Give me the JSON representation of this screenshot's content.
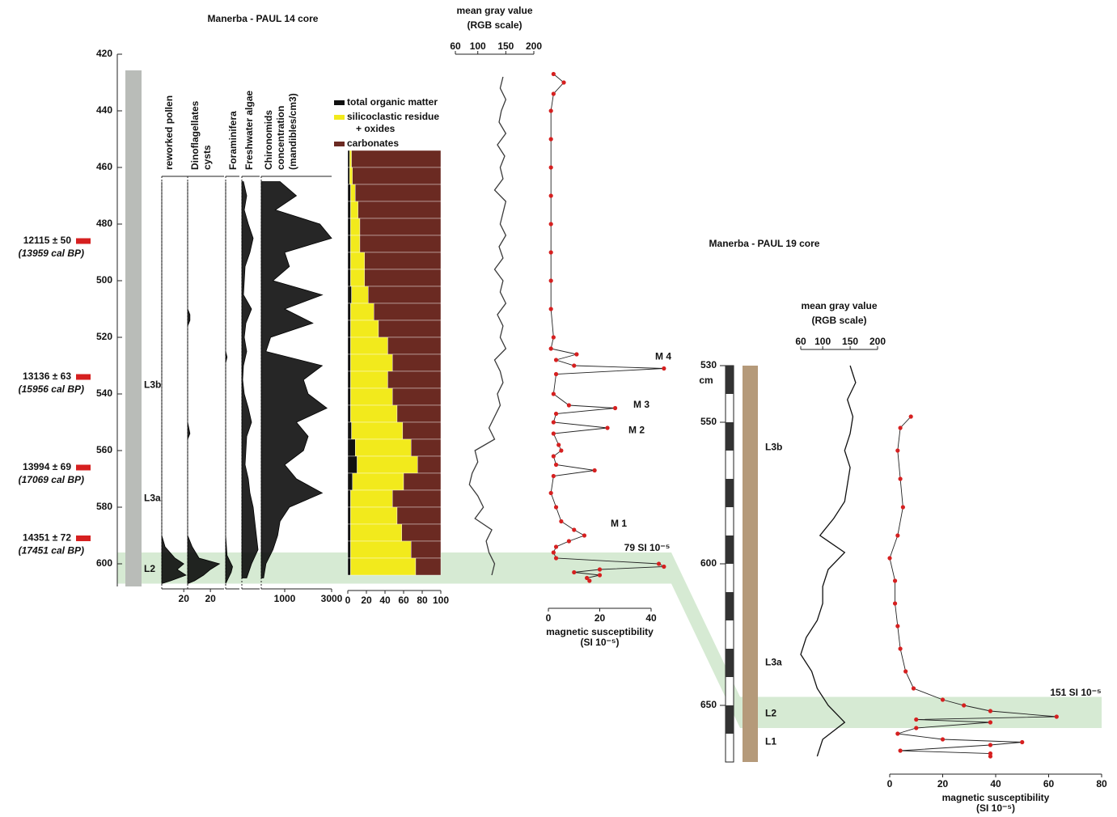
{
  "chart_data": [
    {
      "type": "depth-axis",
      "title": "Manerba - PAUL 14 core",
      "ylim": [
        420,
        608
      ],
      "yticks": [
        420,
        440,
        460,
        480,
        500,
        520,
        540,
        560,
        580,
        600
      ],
      "dates": [
        {
          "label": "12115 ± 50",
          "cal": "(13959 cal BP)",
          "depth": 486
        },
        {
          "label": "13136 ± 63",
          "cal": "(15956 cal BP)",
          "depth": 534
        },
        {
          "label": "13994 ± 69",
          "cal": "(17069 cal BP)",
          "depth": 566
        },
        {
          "label": "14351 ± 72",
          "cal": "(17451 cal BP)",
          "depth": 591
        }
      ],
      "units": [
        {
          "label": "L3b",
          "depth": 537
        },
        {
          "label": "L3a",
          "depth": 577
        },
        {
          "label": "L2",
          "depth": 602
        }
      ],
      "event_band": [
        596,
        607
      ],
      "color": "#cfe6cb"
    },
    {
      "type": "area",
      "title": [
        "reworked pollen"
      ],
      "xlim": [
        0,
        25
      ],
      "xticks": [
        20
      ],
      "color": "#000000",
      "depth": [
        465,
        590,
        594,
        598,
        600,
        602,
        604,
        606,
        607
      ],
      "values": [
        0,
        0,
        3,
        12,
        20,
        14,
        22,
        8,
        0
      ]
    },
    {
      "type": "area",
      "title": [
        "Dinoflagellates",
        "cysts"
      ],
      "xlim": [
        0,
        32
      ],
      "xticks": [
        20
      ],
      "color": "#000000",
      "depth": [
        465,
        510,
        512,
        514,
        516,
        550,
        552,
        554,
        556,
        590,
        594,
        598,
        600,
        602,
        604,
        606,
        607
      ],
      "values": [
        0,
        0,
        2,
        2,
        0,
        0,
        1,
        2,
        0,
        0,
        4,
        10,
        28,
        20,
        14,
        6,
        0
      ]
    },
    {
      "type": "area",
      "title": [
        "Foraminifera"
      ],
      "xlim": [
        0,
        20
      ],
      "xticks": [],
      "color": "#000000",
      "depth": [
        465,
        525,
        527,
        529,
        590,
        597,
        599,
        601,
        603,
        605,
        607
      ],
      "values": [
        0,
        0,
        2,
        0,
        0,
        2,
        6,
        10,
        8,
        4,
        0
      ]
    },
    {
      "type": "area",
      "title": [
        "Freshwater algae"
      ],
      "xlim": [
        0,
        22
      ],
      "xticks": [],
      "color": "#000000",
      "depth": [
        465,
        470,
        475,
        480,
        485,
        490,
        495,
        500,
        505,
        510,
        515,
        520,
        525,
        530,
        535,
        540,
        545,
        550,
        555,
        560,
        565,
        570,
        575,
        580,
        585,
        590,
        595,
        600,
        605
      ],
      "values": [
        2,
        6,
        3,
        8,
        14,
        10,
        4,
        3,
        2,
        12,
        5,
        3,
        6,
        2,
        1,
        3,
        8,
        12,
        6,
        5,
        4,
        8,
        10,
        14,
        16,
        18,
        20,
        12,
        6
      ]
    },
    {
      "type": "area",
      "title": [
        "Chironomids",
        "concentration",
        "(mandibles/cm3)"
      ],
      "xlim": [
        0,
        3000
      ],
      "xticks": [
        1000,
        3000
      ],
      "color": "#000000",
      "depth": [
        465,
        470,
        475,
        480,
        485,
        490,
        495,
        500,
        505,
        510,
        515,
        520,
        525,
        530,
        535,
        540,
        545,
        550,
        555,
        560,
        565,
        570,
        575,
        580,
        585,
        590,
        595,
        600,
        605
      ],
      "values": [
        800,
        1500,
        600,
        2500,
        3000,
        1000,
        1200,
        500,
        2600,
        1000,
        2200,
        400,
        200,
        2600,
        1800,
        2000,
        2800,
        1500,
        2000,
        1800,
        1000,
        1500,
        2600,
        1200,
        800,
        700,
        500,
        200,
        100
      ]
    },
    {
      "type": "stacked-bar",
      "xlim": [
        0,
        100
      ],
      "xticks": [
        0,
        20,
        40,
        60,
        80,
        100
      ],
      "depth": [
        457,
        463,
        469,
        475,
        481,
        487,
        493,
        499,
        505,
        511,
        517,
        523,
        529,
        535,
        541,
        547,
        553,
        559,
        565,
        571,
        577,
        583,
        589,
        595,
        601
      ],
      "series": [
        {
          "name": "total organic matter",
          "color": "#111111",
          "values": [
            2,
            2,
            3,
            3,
            3,
            3,
            3,
            3,
            4,
            3,
            3,
            3,
            3,
            3,
            3,
            3,
            4,
            8,
            10,
            5,
            3,
            3,
            3,
            3,
            3
          ]
        },
        {
          "name": [
            "silicoclastic residue",
            "+ oxides"
          ],
          "color": "#f2ea1c",
          "values": [
            2,
            3,
            5,
            8,
            10,
            10,
            15,
            15,
            18,
            25,
            30,
            40,
            45,
            40,
            45,
            50,
            55,
            60,
            65,
            55,
            45,
            50,
            55,
            65,
            70
          ]
        },
        {
          "name": "carbonates",
          "color": "#6b2a22",
          "values": [
            96,
            95,
            92,
            89,
            87,
            87,
            82,
            82,
            78,
            72,
            67,
            57,
            52,
            57,
            52,
            47,
            41,
            32,
            25,
            40,
            52,
            47,
            42,
            32,
            27
          ]
        }
      ]
    },
    {
      "type": "line",
      "title": "mean gray value",
      "subtitle": "(RGB scale)",
      "xlim": [
        60,
        200
      ],
      "xticks": [
        60,
        100,
        150,
        200
      ],
      "color": "#3a3a3a",
      "depth": [
        428,
        432,
        436,
        440,
        444,
        448,
        452,
        456,
        460,
        464,
        468,
        472,
        476,
        480,
        484,
        488,
        492,
        496,
        500,
        504,
        508,
        512,
        516,
        520,
        524,
        528,
        532,
        536,
        540,
        544,
        548,
        552,
        556,
        560,
        564,
        568,
        572,
        576,
        580,
        584,
        588,
        592,
        596,
        600,
        604
      ],
      "values": [
        145,
        140,
        150,
        142,
        138,
        150,
        135,
        148,
        140,
        145,
        130,
        150,
        145,
        140,
        150,
        138,
        145,
        130,
        145,
        140,
        150,
        135,
        145,
        140,
        150,
        130,
        140,
        145,
        135,
        140,
        130,
        120,
        130,
        95,
        100,
        90,
        85,
        100,
        110,
        95,
        125,
        115,
        120,
        130,
        125
      ]
    },
    {
      "type": "scatter-line",
      "xlabel": "magnetic susceptibility",
      "xunit": "(SI 10⁻⁵)",
      "xlim": [
        0,
        40
      ],
      "xticks": [
        0,
        20,
        40
      ],
      "color": "#d62020",
      "depth": [
        427,
        430,
        434,
        440,
        450,
        460,
        470,
        480,
        490,
        500,
        510,
        520,
        524,
        526,
        528,
        530,
        531,
        533,
        540,
        544,
        545,
        547,
        550,
        552,
        554,
        558,
        560,
        562,
        565,
        567,
        569,
        575,
        580,
        585,
        588,
        590,
        592,
        594,
        596,
        598,
        600,
        601,
        602,
        603,
        604,
        605,
        606
      ],
      "values": [
        2,
        6,
        2,
        1,
        1,
        1,
        1,
        1,
        1,
        1,
        1,
        2,
        1,
        11,
        3,
        10,
        45,
        3,
        2,
        8,
        26,
        3,
        2,
        23,
        2,
        4,
        5,
        2,
        3,
        18,
        2,
        1,
        3,
        5,
        10,
        14,
        8,
        3,
        2,
        3,
        43,
        45,
        20,
        10,
        20,
        15,
        16
      ],
      "annotations": [
        {
          "text": "M 4",
          "depth": 527
        },
        {
          "text": "M 3",
          "depth": 544
        },
        {
          "text": "M 2",
          "depth": 553
        },
        {
          "text": "M 1",
          "depth": 586
        }
      ],
      "offscale_label": "79 SI 10⁻⁵"
    },
    {
      "type": "depth-axis",
      "title": "Manerba - PAUL 19 core",
      "ylim": [
        530,
        670
      ],
      "yticks": [
        530,
        550,
        600,
        650
      ],
      "unit": "cm",
      "units": [
        {
          "label": "L3b",
          "depth": 559
        },
        {
          "label": "L3a",
          "depth": 635
        },
        {
          "label": "L2",
          "depth": 653
        },
        {
          "label": "L1",
          "depth": 663
        }
      ],
      "event_band": [
        647,
        658
      ],
      "color": "#cfe6cb"
    },
    {
      "type": "line",
      "title": "mean gray value",
      "subtitle": "(RGB scale)",
      "xlim": [
        60,
        200
      ],
      "xticks": [
        60,
        100,
        150,
        200
      ],
      "color": "#111111",
      "depth": [
        530,
        536,
        542,
        548,
        554,
        560,
        566,
        572,
        578,
        584,
        590,
        596,
        602,
        608,
        614,
        620,
        626,
        632,
        638,
        644,
        650,
        656,
        662,
        668
      ],
      "values": [
        150,
        160,
        145,
        155,
        150,
        140,
        150,
        145,
        140,
        120,
        95,
        140,
        110,
        100,
        100,
        90,
        70,
        60,
        80,
        90,
        110,
        140,
        100,
        90
      ]
    },
    {
      "type": "scatter-line",
      "xlabel": "magnetic susceptibility",
      "xunit": "(SI 10⁻⁵)",
      "xlim": [
        0,
        80
      ],
      "xticks": [
        0,
        20,
        40,
        60,
        80
      ],
      "color": "#d62020",
      "depth": [
        548,
        552,
        560,
        570,
        580,
        590,
        598,
        606,
        614,
        622,
        630,
        638,
        644,
        648,
        650,
        652,
        654,
        655,
        656,
        658,
        660,
        662,
        663,
        664,
        666,
        667,
        668
      ],
      "values": [
        8,
        4,
        3,
        4,
        5,
        3,
        0,
        2,
        2,
        3,
        4,
        6,
        9,
        20,
        28,
        38,
        63,
        10,
        38,
        10,
        3,
        20,
        50,
        38,
        4,
        38,
        38
      ],
      "annotations": [],
      "offscale_label": "151 SI 10⁻⁵"
    }
  ]
}
